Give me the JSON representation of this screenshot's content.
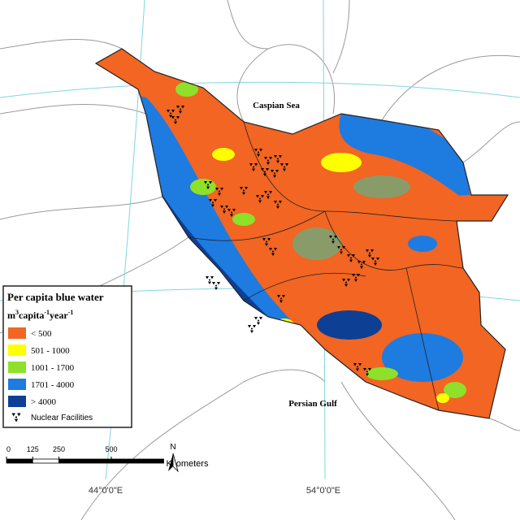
{
  "map_labels": {
    "caspian": "Caspian Sea",
    "gulf": "Persian Gulf"
  },
  "legend": {
    "title": "Per capita blue water",
    "unit": [
      "m",
      "3",
      "capita",
      "-1",
      "year",
      "-1"
    ],
    "items": [
      {
        "label": "< 500",
        "color": "#f26522"
      },
      {
        "label": "501 - 1000",
        "color": "#ffff00"
      },
      {
        "label": "1001 - 1700",
        "color": "#8ee02a"
      },
      {
        "label": "1701 - 4000",
        "color": "#1e7be0"
      },
      {
        "label": "> 4000",
        "color": "#0d3f94"
      }
    ],
    "nuclear": "Nuclear Facilities"
  },
  "scale_bar": {
    "ticks": [
      0,
      125,
      250,
      500
    ],
    "unit": "Kilometers"
  },
  "north": "N",
  "graticule": [
    "44°0'0\"E",
    "54°0'0\"E"
  ]
}
